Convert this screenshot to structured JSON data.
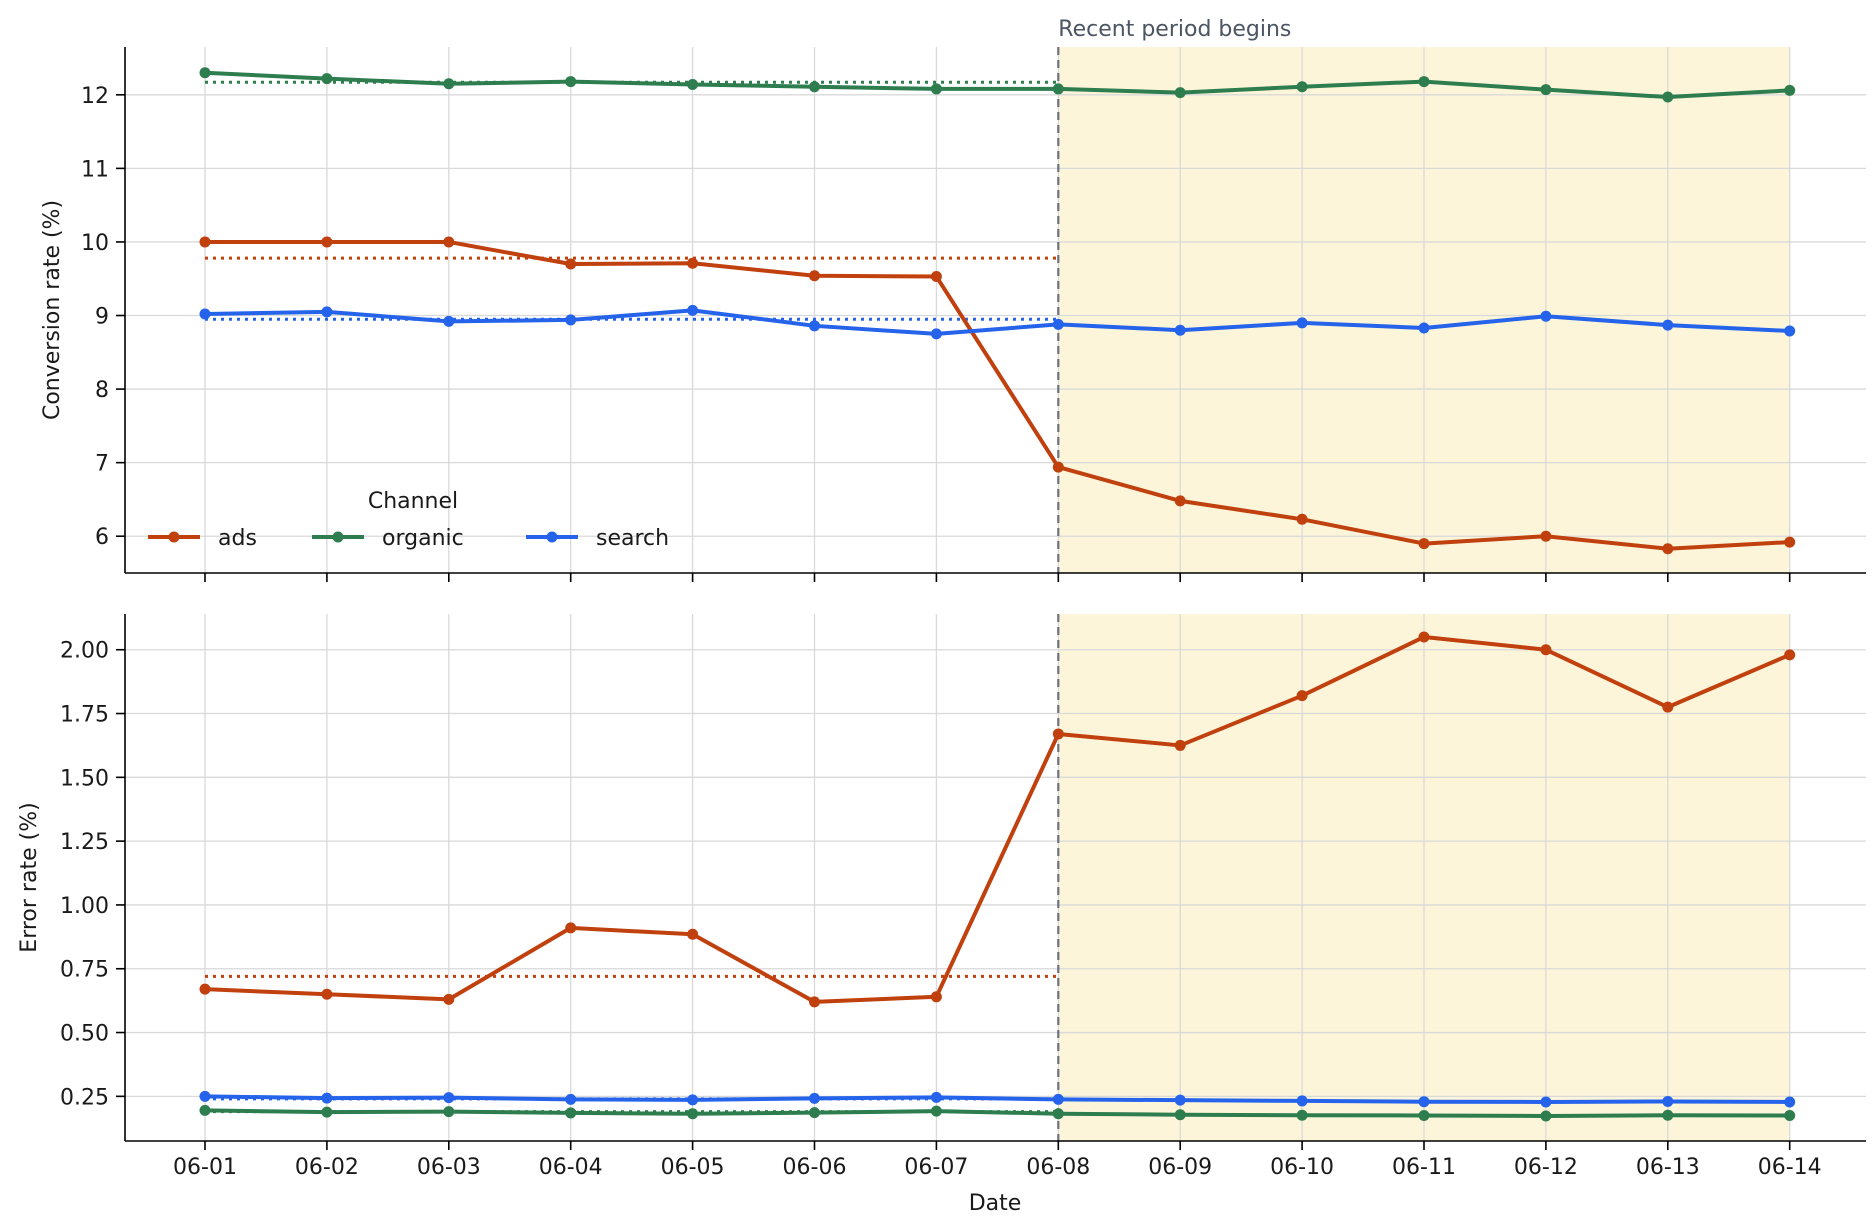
{
  "chart_data": {
    "type": "line",
    "annotation": "Recent period begins",
    "recent_period_start": "06-08",
    "colors": {
      "ads": "#c0400e",
      "organic": "#2e7d4f",
      "search": "#2563eb",
      "recent_shade": "#fdf5d9",
      "marker_line": "#6b7280",
      "grid": "#d9d9d9"
    },
    "x": [
      "06-01",
      "06-02",
      "06-03",
      "06-04",
      "06-05",
      "06-06",
      "06-07",
      "06-08",
      "06-09",
      "06-10",
      "06-11",
      "06-12",
      "06-13",
      "06-14"
    ],
    "xlabel": "Date",
    "legend": {
      "title": "Channel",
      "placement": "lower-left of top panel",
      "entries": [
        "ads",
        "organic",
        "search"
      ]
    },
    "panels": [
      {
        "ylabel": "Conversion rate (%)",
        "ylim": [
          5.5,
          12.65
        ],
        "yticks": [
          6,
          7,
          8,
          9,
          10,
          11,
          12
        ],
        "ytick_labels": [
          "6",
          "7",
          "8",
          "9",
          "10",
          "11",
          "12"
        ],
        "series": [
          {
            "name": "ads",
            "values": [
              10.0,
              10.0,
              10.0,
              9.7,
              9.71,
              9.54,
              9.53,
              6.94,
              6.48,
              6.23,
              5.9,
              6.0,
              5.83,
              5.92
            ],
            "baseline": 9.78
          },
          {
            "name": "organic",
            "values": [
              12.3,
              12.22,
              12.15,
              12.18,
              12.14,
              12.11,
              12.08,
              12.08,
              12.03,
              12.11,
              12.18,
              12.07,
              11.97,
              12.06
            ],
            "baseline": 12.17
          },
          {
            "name": "search",
            "values": [
              9.02,
              9.05,
              8.92,
              8.94,
              9.07,
              8.86,
              8.75,
              8.88,
              8.8,
              8.9,
              8.83,
              8.99,
              8.87,
              8.79
            ],
            "baseline": 8.95
          }
        ]
      },
      {
        "ylabel": "Error rate (%)",
        "ylim": [
          0.075,
          2.14
        ],
        "yticks": [
          0.25,
          0.5,
          0.75,
          1.0,
          1.25,
          1.5,
          1.75,
          2.0
        ],
        "ytick_labels": [
          "0.25",
          "0.50",
          "0.75",
          "1.00",
          "1.25",
          "1.50",
          "1.75",
          "2.00"
        ],
        "series": [
          {
            "name": "ads",
            "values": [
              0.67,
              0.65,
              0.63,
              0.91,
              0.885,
              0.62,
              0.64,
              1.67,
              1.625,
              1.82,
              2.05,
              2.0,
              1.775,
              1.98
            ],
            "baseline": 0.72
          },
          {
            "name": "organic",
            "values": [
              0.195,
              0.188,
              0.19,
              0.185,
              0.182,
              0.186,
              0.192,
              0.182,
              0.178,
              0.176,
              0.175,
              0.173,
              0.176,
              0.175
            ],
            "baseline": 0.19
          },
          {
            "name": "search",
            "values": [
              0.25,
              0.243,
              0.245,
              0.238,
              0.236,
              0.242,
              0.246,
              0.238,
              0.235,
              0.232,
              0.229,
              0.228,
              0.23,
              0.228
            ],
            "baseline": 0.24
          }
        ]
      }
    ]
  }
}
